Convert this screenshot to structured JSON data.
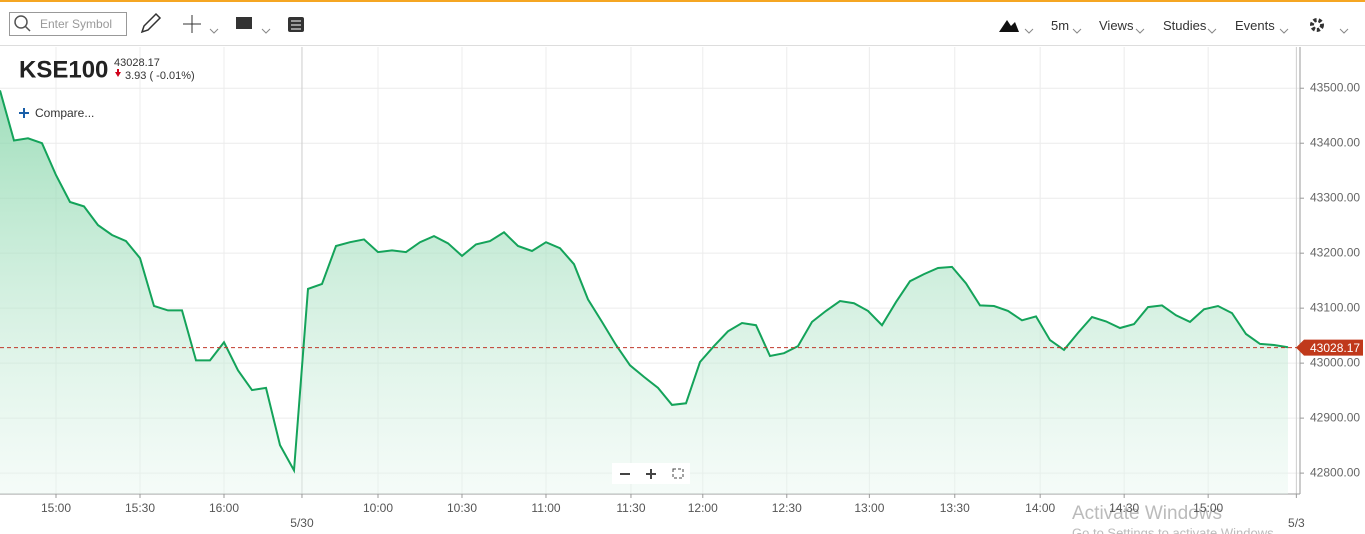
{
  "toolbar": {
    "symbol_placeholder": "Enter Symbol",
    "interval": "5m",
    "views": "Views",
    "studies": "Studies",
    "events": "Events"
  },
  "watermark": {
    "title": "Activate Windows",
    "subtitle": "Go to Settings to activate Windows."
  },
  "chart_data": {
    "type": "area",
    "title": "KSE100",
    "last_price": 43028.17,
    "change": "3.93 ( -0.01%)",
    "compare": "Compare...",
    "color": "#14a35a",
    "values": [
      43496,
      43405,
      43409,
      43400,
      43342,
      43293,
      43285,
      43251,
      43233,
      43222,
      43191,
      43104,
      43096,
      43096,
      43005,
      43005,
      43038,
      42987,
      42951,
      42955,
      42851,
      42805,
      43135,
      43144,
      43213,
      43220,
      43225,
      43202,
      43205,
      43202,
      43220,
      43231,
      43218,
      43195,
      43216,
      43222,
      43238,
      43213,
      43204,
      43220,
      43209,
      43180,
      43116,
      43075,
      43033,
      42996,
      42975,
      42955,
      42924,
      42927,
      43002,
      43031,
      43058,
      43073,
      43069,
      43013,
      43018,
      43031,
      43075,
      43095,
      43113,
      43109,
      43095,
      43069,
      43111,
      43149,
      43162,
      43173,
      43175,
      43145,
      43105,
      43104,
      43095,
      43078,
      43085,
      43042,
      43024,
      43055,
      43084,
      43076,
      43064,
      43071,
      43102,
      43105,
      43087,
      43075,
      43098,
      43104,
      43091,
      43053,
      43035,
      43033,
      43029
    ],
    "xlim": [
      0,
      92.86
    ],
    "xticks": [
      {
        "value": 4,
        "label": "15:00"
      },
      {
        "value": 10,
        "label": "15:30"
      },
      {
        "value": 16,
        "label": "16:00"
      },
      {
        "value": 21.57,
        "label": "5/30"
      },
      {
        "value": 27,
        "label": "10:00"
      },
      {
        "value": 33,
        "label": "10:30"
      },
      {
        "value": 39,
        "label": "11:00"
      },
      {
        "value": 45.07,
        "label": "11:30"
      },
      {
        "value": 50.2,
        "label": "12:00"
      },
      {
        "value": 56.2,
        "label": "12:30"
      },
      {
        "value": 62.1,
        "label": "13:00"
      },
      {
        "value": 68.2,
        "label": "13:30"
      },
      {
        "value": 74.3,
        "label": "14:00"
      },
      {
        "value": 80.3,
        "label": "14:30"
      },
      {
        "value": 86.3,
        "label": "15:00"
      },
      {
        "value": 92.6,
        "label": "5/3"
      }
    ],
    "ylim": [
      42762,
      43575
    ],
    "yticks": [
      {
        "value": 42800,
        "label": "42800.00"
      },
      {
        "value": 42900,
        "label": "42900.00"
      },
      {
        "value": 43000,
        "label": "43000.00"
      },
      {
        "value": 43100,
        "label": "43100.00"
      },
      {
        "value": 43200,
        "label": "43200.00"
      },
      {
        "value": 43300,
        "label": "43300.00"
      },
      {
        "value": 43400,
        "label": "43400.00"
      },
      {
        "value": 43500,
        "label": "43500.00"
      }
    ],
    "grid": true
  }
}
